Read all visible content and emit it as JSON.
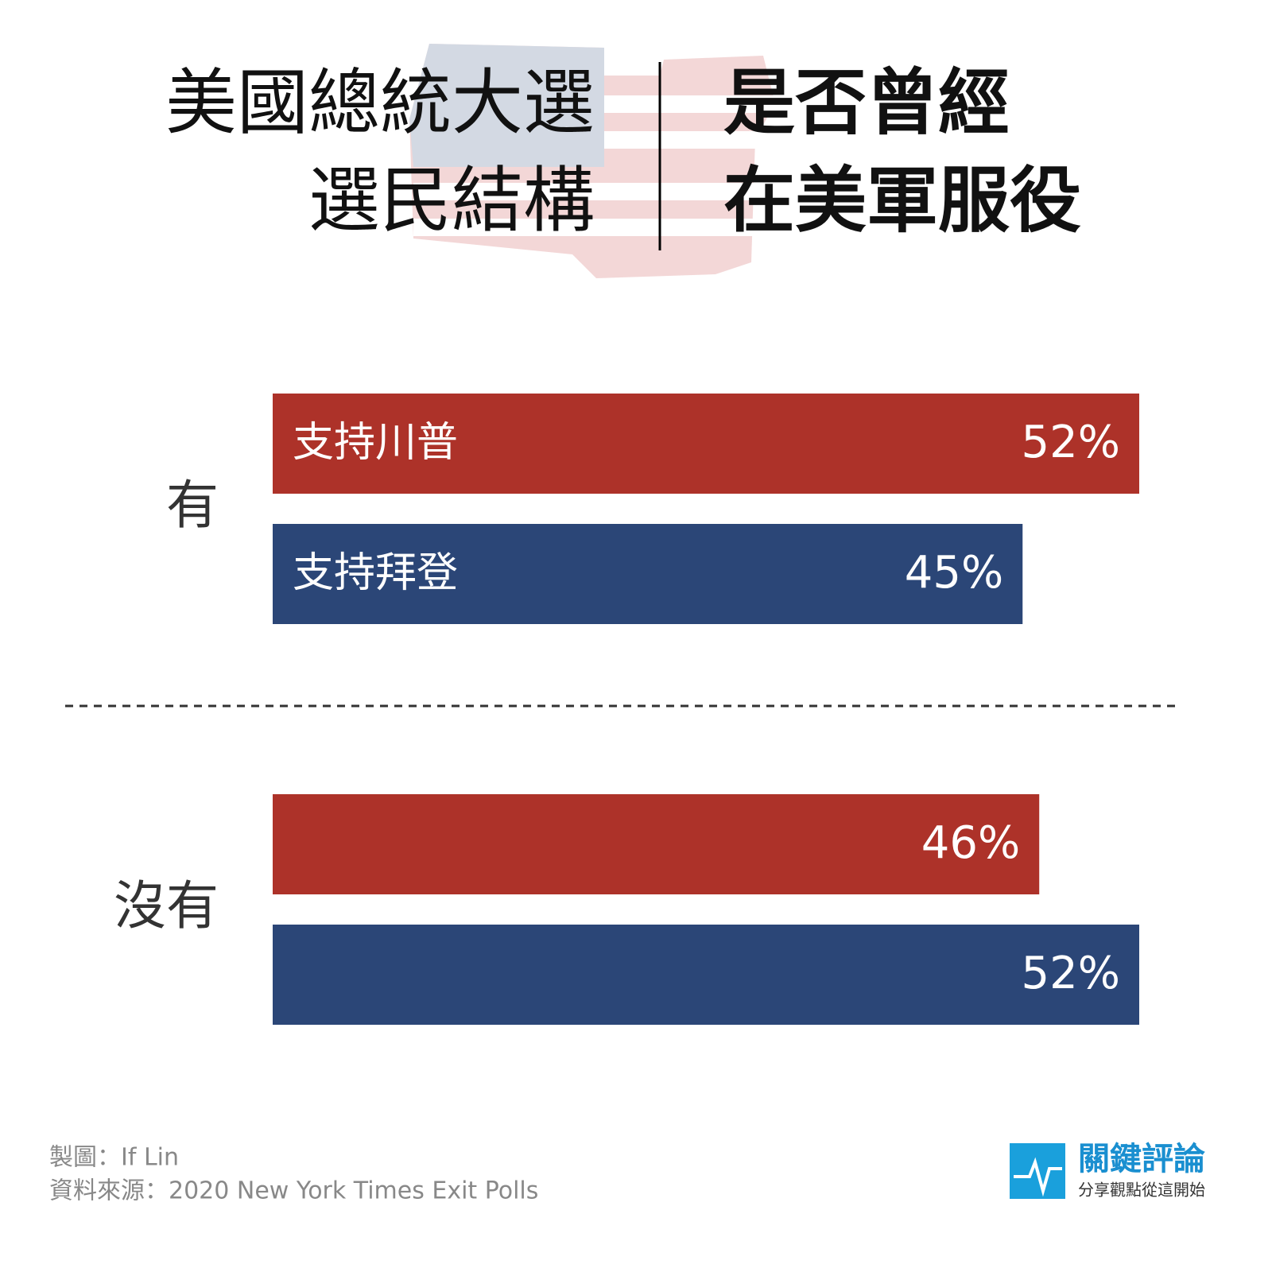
{
  "chart_data": {
    "type": "bar",
    "title": {
      "left": [
        "美國總統大選",
        "選民結構"
      ],
      "right": [
        "是否曾經",
        "在美軍服役"
      ]
    },
    "categories": [
      "有",
      "沒有"
    ],
    "series": [
      {
        "name": "支持川普",
        "color": "#ad3229",
        "values": [
          52,
          46
        ],
        "value_labels": [
          "52%",
          "46%"
        ]
      },
      {
        "name": "支持拜登",
        "color": "#2b4677",
        "values": [
          45,
          52
        ],
        "value_labels": [
          "45%",
          "52%"
        ]
      }
    ],
    "footer": [
      "製圖：If Lin",
      "資料來源：2020 New York Times Exit Polls"
    ],
    "logo": {
      "name": "關鍵評論",
      "slogan": "分享觀點從這開始"
    }
  }
}
